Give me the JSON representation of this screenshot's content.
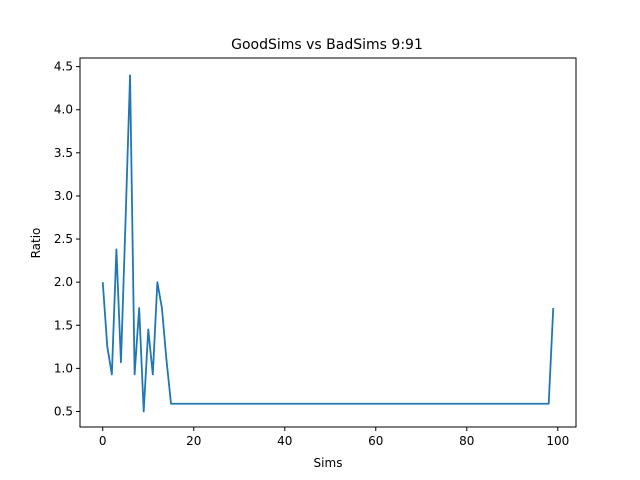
{
  "chart_data": {
    "type": "line",
    "title": "GoodSims vs BadSims 9:91",
    "xlabel": "Sims",
    "ylabel": "Ratio",
    "xlim": [
      -5,
      104
    ],
    "ylim": [
      0.32,
      4.6
    ],
    "xticks": [
      0,
      20,
      40,
      60,
      80,
      100
    ],
    "yticks": [
      0.5,
      1.0,
      1.5,
      2.0,
      2.5,
      3.0,
      3.5,
      4.0,
      4.5
    ],
    "xtick_labels": [
      "0",
      "20",
      "40",
      "60",
      "80",
      "100"
    ],
    "ytick_labels": [
      "0.5",
      "1.0",
      "1.5",
      "2.0",
      "2.5",
      "3.0",
      "3.5",
      "4.0",
      "4.5"
    ],
    "grid": false,
    "line_color": "#1f77b4",
    "series": [
      {
        "x": [
          0,
          1,
          2,
          3,
          4,
          5,
          6,
          7,
          8,
          9,
          10,
          11,
          12,
          13,
          14,
          15,
          98,
          99
        ],
        "values": [
          2.0,
          1.25,
          0.93,
          2.38,
          1.07,
          2.7,
          4.4,
          0.93,
          1.7,
          0.5,
          1.45,
          0.93,
          2.0,
          1.7,
          1.1,
          0.59,
          0.59,
          1.7
        ]
      }
    ]
  }
}
